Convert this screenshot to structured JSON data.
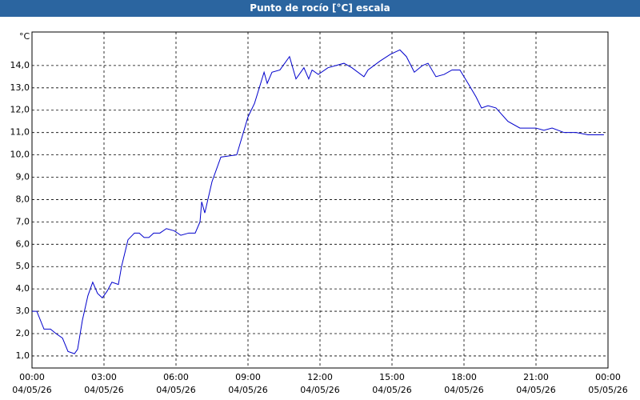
{
  "chart_data": {
    "type": "line",
    "title": "Punto de rocío [°C] escala",
    "y_unit": "°C",
    "x": [
      0,
      0.2,
      0.5,
      0.77,
      1,
      1.27,
      1.5,
      1.77,
      1.9,
      2.1,
      2.33,
      2.53,
      2.73,
      2.93,
      3.13,
      3.33,
      3.6,
      3.73,
      4,
      4.27,
      4.47,
      4.67,
      4.87,
      5.07,
      5.33,
      5.6,
      5.93,
      6.2,
      6.53,
      6.8,
      7,
      7.07,
      7.2,
      7.5,
      7.87,
      8.53,
      9,
      9.27,
      9.67,
      9.8,
      10,
      10.33,
      10.73,
      11,
      11.33,
      11.53,
      11.67,
      11.93,
      12.33,
      13,
      13.33,
      13.83,
      14,
      14.5,
      14.93,
      15.33,
      15.6,
      15.93,
      16.27,
      16.5,
      16.83,
      17.17,
      17.5,
      17.83,
      18.17,
      18.5,
      18.73,
      19,
      19.33,
      19.83,
      20.33,
      21,
      21.33,
      21.67,
      22.17,
      22.67,
      23.17,
      23.83
    ],
    "series": [
      {
        "name": "Punto de rocío",
        "color": "#0000cc",
        "values": [
          3.0,
          3.0,
          2.2,
          2.2,
          2.0,
          1.8,
          1.2,
          1.1,
          1.3,
          2.6,
          3.7,
          4.3,
          3.8,
          3.6,
          3.9,
          4.3,
          4.2,
          5.0,
          6.2,
          6.5,
          6.5,
          6.3,
          6.3,
          6.5,
          6.5,
          6.7,
          6.6,
          6.4,
          6.5,
          6.5,
          7.0,
          7.9,
          7.4,
          8.8,
          9.9,
          10.0,
          11.7,
          12.3,
          13.7,
          13.2,
          13.7,
          13.8,
          14.4,
          13.4,
          13.9,
          13.4,
          13.8,
          13.6,
          13.9,
          14.1,
          13.9,
          13.5,
          13.8,
          14.2,
          14.5,
          14.7,
          14.4,
          13.7,
          14.0,
          14.1,
          13.5,
          13.6,
          13.8,
          13.8,
          13.2,
          12.6,
          12.1,
          12.2,
          12.1,
          11.5,
          11.2,
          11.2,
          11.1,
          11.2,
          11.0,
          11.0,
          10.9,
          10.9
        ]
      }
    ],
    "xlim": [
      0,
      24
    ],
    "xticks": [
      {
        "value": 0,
        "label": "00:00\n04/05/26"
      },
      {
        "value": 3,
        "label": "03:00\n04/05/26"
      },
      {
        "value": 6,
        "label": "06:00\n04/05/26"
      },
      {
        "value": 9,
        "label": "09:00\n04/05/26"
      },
      {
        "value": 12,
        "label": "12:00\n04/05/26"
      },
      {
        "value": 15,
        "label": "15:00\n04/05/26"
      },
      {
        "value": 18,
        "label": "18:00\n04/05/26"
      },
      {
        "value": 21,
        "label": "21:00\n04/05/26"
      },
      {
        "value": 24,
        "label": "00:00\n05/05/26"
      }
    ],
    "ylim": [
      0.46,
      15.5
    ],
    "yticks": [
      {
        "value": 1,
        "label": "1,0"
      },
      {
        "value": 2,
        "label": "2,0"
      },
      {
        "value": 3,
        "label": "3,0"
      },
      {
        "value": 4,
        "label": "4,0"
      },
      {
        "value": 5,
        "label": "5,0"
      },
      {
        "value": 6,
        "label": "6,0"
      },
      {
        "value": 7,
        "label": "7,0"
      },
      {
        "value": 8,
        "label": "8,0"
      },
      {
        "value": 9,
        "label": "9,0"
      },
      {
        "value": 10,
        "label": "10,0"
      },
      {
        "value": 11,
        "label": "11,0"
      },
      {
        "value": 12,
        "label": "12,0"
      },
      {
        "value": 13,
        "label": "13,0"
      },
      {
        "value": 14,
        "label": "14,0"
      }
    ],
    "grid": true
  }
}
